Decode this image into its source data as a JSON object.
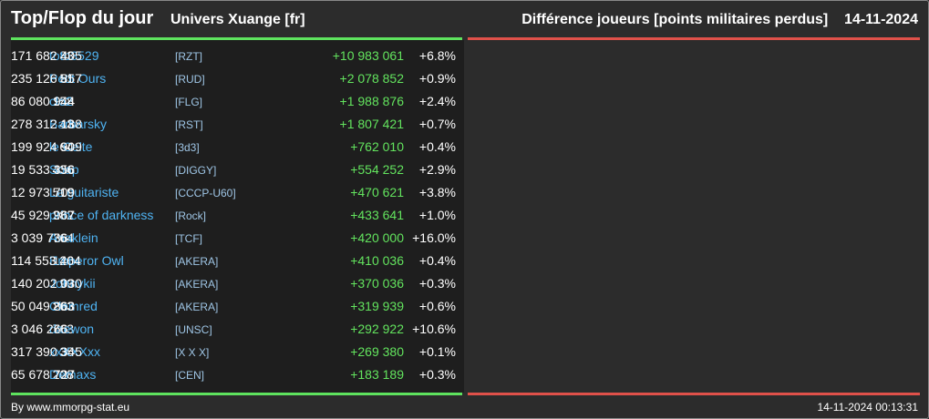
{
  "header": {
    "title": "Top/Flop du jour",
    "subtitle": "Univers Xuange [fr]",
    "right": "Différence joueurs [points militaires perdus]    14-11-2024"
  },
  "colors": {
    "positive": "#63e45e",
    "negative": "#e0514a",
    "link": "#4fb3f2",
    "tag": "#9fc6e6"
  },
  "rows": [
    {
      "rank": "83",
      "name": "toto3529",
      "tag": "[RZT]",
      "points": "171 682 405",
      "diff": "+10 983 061",
      "pct": "+6.8%"
    },
    {
      "rank": "51",
      "name": "Petit Ours",
      "tag": "[RUD]",
      "points": "235 126 857",
      "diff": "+2 078 852",
      "pct": "+0.9%"
    },
    {
      "rank": "158",
      "name": "clo2",
      "tag": "[FLG]",
      "points": "86 080 944",
      "diff": "+1 988 876",
      "pct": "+2.4%"
    },
    {
      "rank": "43",
      "name": "Barbarsky",
      "tag": "[RST]",
      "points": "278 312 188",
      "diff": "+1 807 421",
      "pct": "+0.7%"
    },
    {
      "rank": "64",
      "name": "le Celte",
      "tag": "[3d3]",
      "points": "199 924 909",
      "diff": "+762 010",
      "pct": "+0.4%"
    },
    {
      "rank": "436",
      "name": "Soap",
      "tag": "[DIGGY]",
      "points": "19 533 356",
      "diff": "+554 252",
      "pct": "+2.9%"
    },
    {
      "rank": "519",
      "name": "Le guitariste",
      "tag": "[CCCP-U60]",
      "points": "12 973 709",
      "diff": "+470 621",
      "pct": "+3.8%"
    },
    {
      "rank": "282",
      "name": "prince of darkness",
      "tag": "[Rock]",
      "points": "45 929 967",
      "diff": "+433 641",
      "pct": "+1.0%"
    },
    {
      "rank": "764",
      "name": "Anaklein",
      "tag": "[TCF]",
      "points": "3 039 736",
      "diff": "+420 000",
      "pct": "+16.0%"
    },
    {
      "rank": "126",
      "name": "Emperor Owl",
      "tag": "[AKERA]",
      "points": "114 553 404",
      "diff": "+410 036",
      "pct": "+0.4%"
    },
    {
      "rank": "99",
      "name": "Johnykii",
      "tag": "[AKERA]",
      "points": "140 202 030",
      "diff": "+370 036",
      "pct": "+0.3%"
    },
    {
      "rank": "263",
      "name": "Clemred",
      "tag": "[AKERA]",
      "points": "50 049 863",
      "diff": "+319 939",
      "pct": "+0.6%"
    },
    {
      "rank": "763",
      "name": "daewon",
      "tag": "[UNSC]",
      "points": "3 046 266",
      "diff": "+292 922",
      "pct": "+10.6%"
    },
    {
      "rank": "35",
      "name": "xxXXXxx",
      "tag": "[X X X]",
      "points": "317 390 345",
      "diff": "+269 380",
      "pct": "+0.1%"
    },
    {
      "rank": "208",
      "name": "Demaxs",
      "tag": "[CEN]",
      "points": "65 678 727",
      "diff": "+183 189",
      "pct": "+0.3%"
    }
  ],
  "footer": {
    "left": "By www.mmorpg-stat.eu",
    "right": "14-11-2024 00:13:31"
  }
}
